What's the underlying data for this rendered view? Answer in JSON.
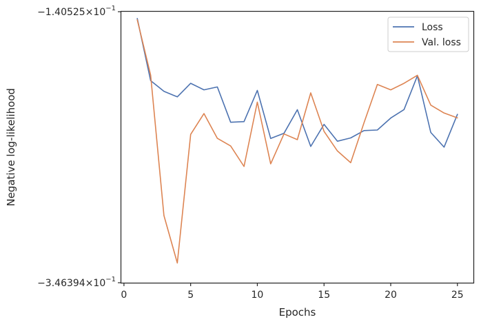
{
  "chart_data": {
    "type": "line",
    "title": "",
    "xlabel": "Epochs",
    "ylabel": "Negative log-likelihood",
    "xlim": [
      -0.2,
      26.2
    ],
    "ylim": [
      -0.346394,
      -0.140525
    ],
    "y_scale": "symlog",
    "x_ticks": [
      0,
      5,
      10,
      15,
      20,
      25
    ],
    "x_tick_labels": [
      "0",
      "5",
      "10",
      "15",
      "20",
      "25"
    ],
    "y_ticks": [
      -0.140525,
      -0.346394
    ],
    "y_tick_labels": [
      {
        "base": "−1.40525×10",
        "exp": "−1"
      },
      {
        "base": "−3.46394×10",
        "exp": "−1"
      }
    ],
    "grid": false,
    "legend_position": "top-right",
    "x": [
      1,
      2,
      3,
      4,
      5,
      6,
      7,
      8,
      9,
      10,
      11,
      12,
      13,
      14,
      15,
      16,
      17,
      18,
      19,
      20,
      21,
      22,
      23,
      24,
      25
    ],
    "series": [
      {
        "name": "Loss",
        "color": "#4c72b0",
        "values": [
          -0.1457,
          -0.1929,
          -0.201,
          -0.2052,
          -0.1949,
          -0.1999,
          -0.1977,
          -0.2245,
          -0.224,
          -0.2003,
          -0.2368,
          -0.2329,
          -0.215,
          -0.2429,
          -0.2261,
          -0.2389,
          -0.2364,
          -0.2308,
          -0.2304,
          -0.2213,
          -0.2149,
          -0.1892,
          -0.2322,
          -0.2434,
          -0.2185
        ]
      },
      {
        "name": "Val. loss",
        "color": "#dd8452",
        "values": [
          -0.1467,
          -0.1887,
          -0.2954,
          -0.3314,
          -0.2337,
          -0.2179,
          -0.2367,
          -0.2425,
          -0.2581,
          -0.2092,
          -0.2561,
          -0.2334,
          -0.2377,
          -0.2022,
          -0.2314,
          -0.2463,
          -0.2552,
          -0.2248,
          -0.1958,
          -0.1999,
          -0.1949,
          -0.1888,
          -0.2115,
          -0.2175,
          -0.2212
        ]
      }
    ]
  }
}
